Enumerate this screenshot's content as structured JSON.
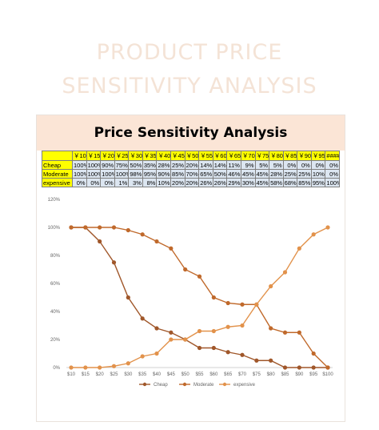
{
  "page": {
    "hero_line1": "PRODUCT PRICE",
    "hero_line2": "SENSITIVITY ANALYSIS"
  },
  "colors": {
    "cheap": "#a0572a",
    "moderate": "#c0692b",
    "expensive": "#e2924b",
    "title_band": "#fbe5d6",
    "table_header": "#ffff00",
    "table_cell": "#dce6f1"
  },
  "table": {
    "title": "Price Sensitivity Analysis",
    "header_prices": [
      "￥10",
      "￥15",
      "￥20",
      "￥25",
      "￥30",
      "￥35",
      "￥40",
      "￥45",
      "￥50",
      "￥55",
      "￥60",
      "￥65",
      "￥70",
      "￥75",
      "￥80",
      "￥85",
      "￥90",
      "￥95",
      "####"
    ],
    "rows": [
      {
        "label": "Cheap",
        "cells": [
          "100%",
          "100%",
          "90%",
          "75%",
          "50%",
          "35%",
          "28%",
          "25%",
          "20%",
          "14%",
          "14%",
          "11%",
          "9%",
          "5%",
          "5%",
          "0%",
          "0%",
          "0%",
          "0%"
        ]
      },
      {
        "label": "Moderate",
        "cells": [
          "100%",
          "100%",
          "100%",
          "100%",
          "98%",
          "95%",
          "90%",
          "85%",
          "70%",
          "65%",
          "50%",
          "46%",
          "45%",
          "45%",
          "28%",
          "25%",
          "25%",
          "10%",
          "0%"
        ]
      },
      {
        "label": "expensive",
        "cells": [
          "0%",
          "0%",
          "0%",
          "1%",
          "3%",
          "8%",
          "10%",
          "20%",
          "20%",
          "26%",
          "26%",
          "29%",
          "30%",
          "45%",
          "58%",
          "68%",
          "85%",
          "95%",
          "100%"
        ]
      }
    ]
  },
  "chart_data": {
    "type": "line",
    "title": "",
    "xlabel": "",
    "ylabel": "",
    "categories": [
      "$10",
      "$15",
      "$20",
      "$25",
      "$30",
      "$35",
      "$40",
      "$45",
      "$50",
      "$55",
      "$60",
      "$65",
      "$70",
      "$75",
      "$80",
      "$85",
      "$90",
      "$95",
      "$100"
    ],
    "y_ticks": [
      "0%",
      "20%",
      "40%",
      "60%",
      "80%",
      "100%",
      "120%"
    ],
    "ylim": [
      0,
      120
    ],
    "grid": false,
    "legend_position": "bottom",
    "series": [
      {
        "name": "Cheap",
        "values": [
          100,
          100,
          90,
          75,
          50,
          35,
          28,
          25,
          20,
          14,
          14,
          11,
          9,
          5,
          5,
          0,
          0,
          0,
          0
        ]
      },
      {
        "name": "Moderate",
        "values": [
          100,
          100,
          100,
          100,
          98,
          95,
          90,
          85,
          70,
          65,
          50,
          46,
          45,
          45,
          28,
          25,
          25,
          10,
          0
        ]
      },
      {
        "name": "expensive",
        "values": [
          0,
          0,
          0,
          1,
          3,
          8,
          10,
          20,
          20,
          26,
          26,
          29,
          30,
          45,
          58,
          68,
          85,
          95,
          100
        ]
      }
    ]
  }
}
